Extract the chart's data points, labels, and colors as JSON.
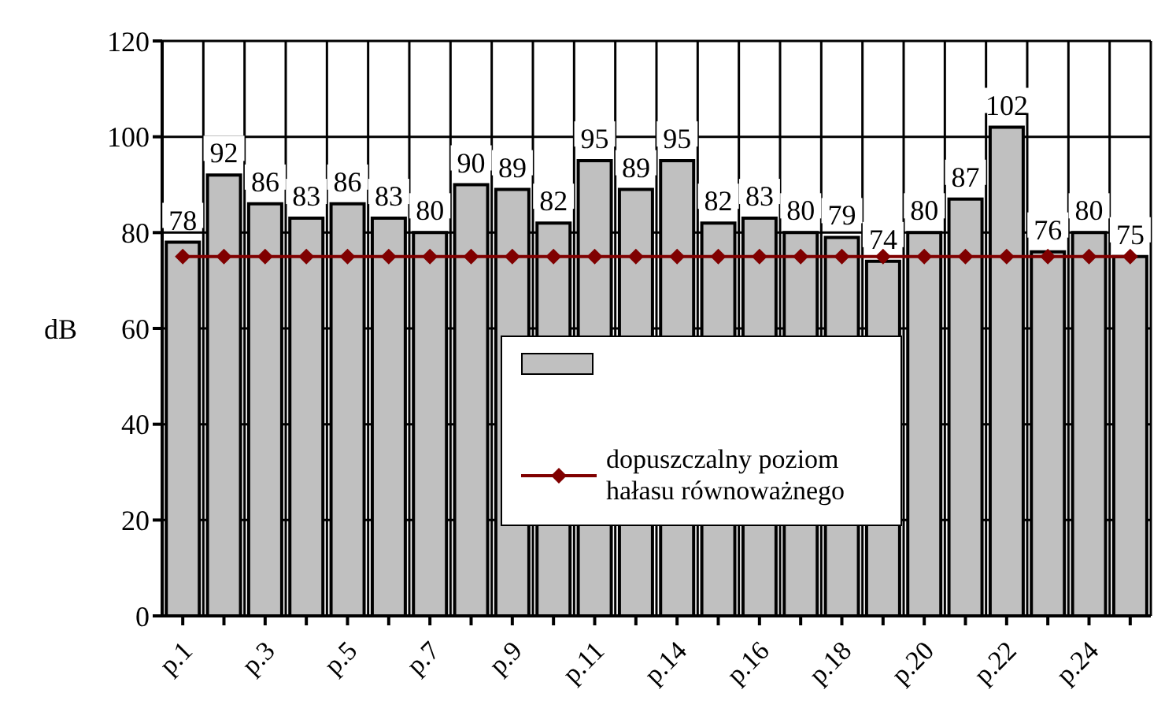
{
  "chart_data": {
    "type": "bar",
    "ylabel": "dB",
    "categories": [
      "p.1",
      null,
      "p.3",
      null,
      "p.5",
      null,
      "p.7",
      null,
      "p.9",
      null,
      "p.11",
      null,
      "p.14",
      null,
      "p.16",
      null,
      "p.18",
      null,
      "p.20",
      null,
      "p.22",
      null,
      "p.24",
      null
    ],
    "ylim": [
      0,
      120
    ],
    "yticks": [
      0,
      20,
      40,
      60,
      80,
      100,
      120
    ],
    "grid": true,
    "legend": "center",
    "series": [
      {
        "color": "#c0c0c0",
        "data_labels": true,
        "values": [
          78,
          92,
          86,
          83,
          86,
          83,
          80,
          90,
          89,
          82,
          95,
          89,
          95,
          82,
          83,
          80,
          79,
          74,
          80,
          87,
          102,
          76,
          80,
          75
        ]
      },
      {
        "type": "line",
        "name": "dopuszczalny poziom hałasu równoważnego",
        "color": "#800000",
        "marker": "diamond",
        "line_style": "solid",
        "values": [
          75,
          75,
          75,
          75,
          75,
          75,
          75,
          75,
          75,
          75,
          75,
          75,
          75,
          75,
          75,
          75,
          75,
          75,
          75,
          75,
          75,
          75,
          75,
          75
        ]
      }
    ]
  }
}
